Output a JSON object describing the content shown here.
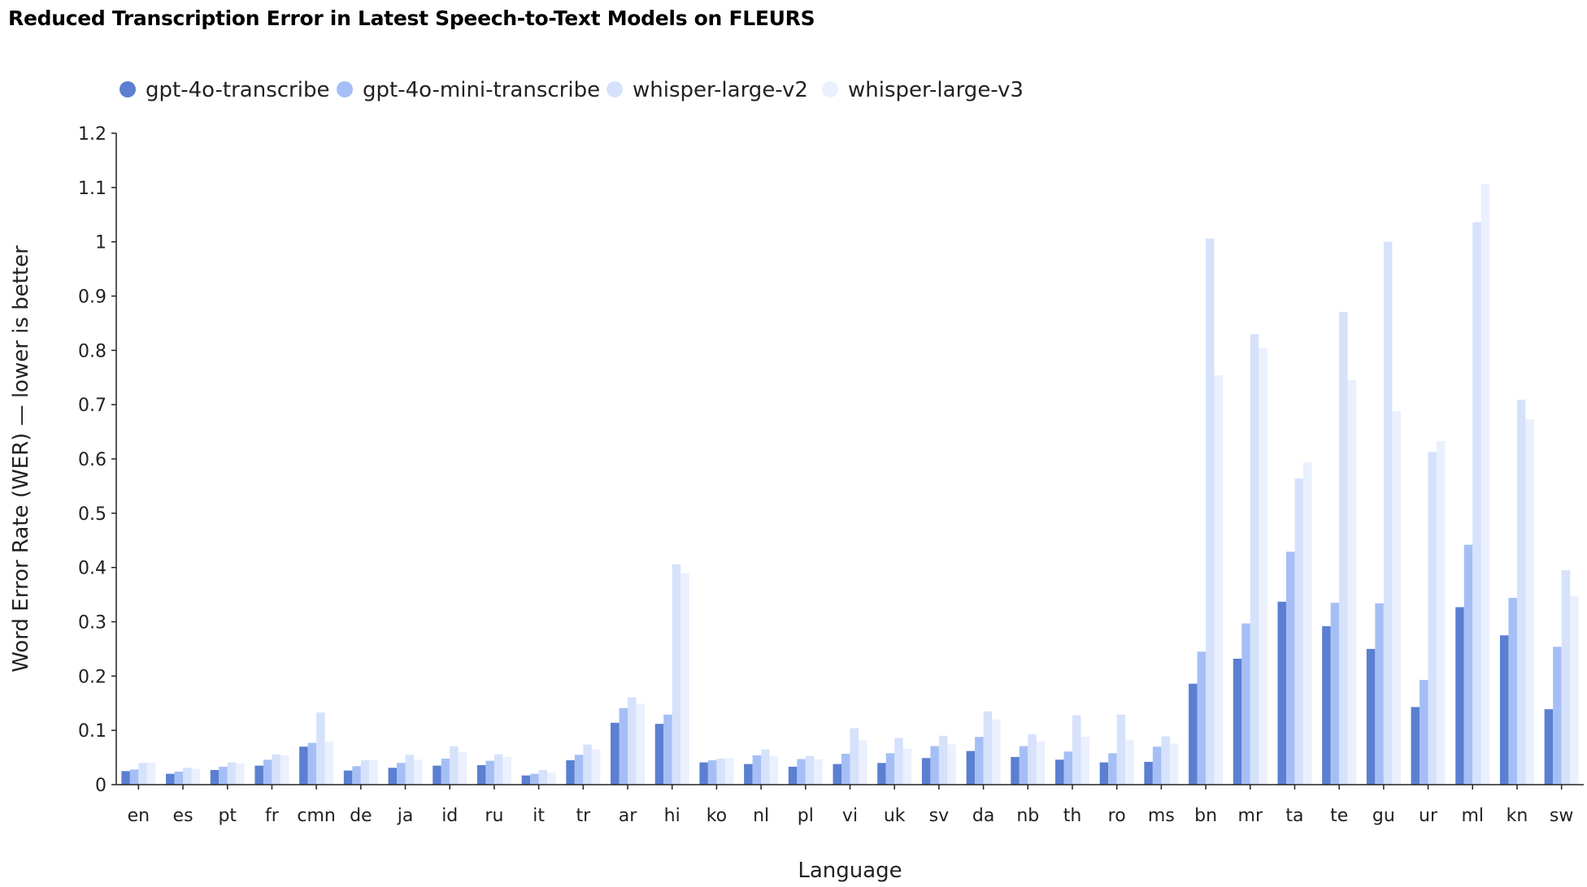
{
  "chart_data": {
    "type": "bar",
    "title": "Reduced Transcription Error in Latest Speech-to-Text Models on FLEURS",
    "xlabel": "Language",
    "ylabel": "Word Error Rate (WER) — lower is better",
    "ylim": [
      0,
      1.2
    ],
    "yticks": [
      "0",
      "0.1",
      "0.2",
      "0.3",
      "0.4",
      "0.5",
      "0.6",
      "0.7",
      "0.8",
      "0.9",
      "1",
      "1.1",
      "1.2"
    ],
    "grid": false,
    "legend_position": "top-left",
    "categories": [
      "en",
      "es",
      "pt",
      "fr",
      "cmn",
      "de",
      "ja",
      "id",
      "ru",
      "it",
      "tr",
      "ar",
      "hi",
      "ko",
      "nl",
      "pl",
      "vi",
      "uk",
      "sv",
      "da",
      "nb",
      "th",
      "ro",
      "ms",
      "bn",
      "mr",
      "ta",
      "te",
      "gu",
      "ur",
      "ml",
      "kn",
      "sw"
    ],
    "series": [
      {
        "name": "gpt-4o-transcribe",
        "color": "#5b7fd1",
        "values": [
          0.025,
          0.02,
          0.027,
          0.035,
          0.07,
          0.026,
          0.031,
          0.035,
          0.036,
          0.017,
          0.045,
          0.114,
          0.112,
          0.041,
          0.038,
          0.033,
          0.038,
          0.04,
          0.049,
          0.062,
          0.051,
          0.046,
          0.041,
          0.042,
          0.186,
          0.232,
          0.337,
          0.292,
          0.25,
          0.143,
          0.327,
          0.275,
          0.139
        ]
      },
      {
        "name": "gpt-4o-mini-transcribe",
        "color": "#a5bff6",
        "values": [
          0.028,
          0.024,
          0.033,
          0.046,
          0.077,
          0.034,
          0.04,
          0.048,
          0.044,
          0.02,
          0.055,
          0.141,
          0.129,
          0.045,
          0.054,
          0.047,
          0.057,
          0.058,
          0.071,
          0.088,
          0.071,
          0.061,
          0.058,
          0.07,
          0.245,
          0.297,
          0.429,
          0.335,
          0.334,
          0.193,
          0.442,
          0.344,
          0.254
        ]
      },
      {
        "name": "whisper-large-v2",
        "color": "#d6e2fb",
        "values": [
          0.04,
          0.031,
          0.041,
          0.056,
          0.133,
          0.045,
          0.055,
          0.071,
          0.056,
          0.027,
          0.074,
          0.161,
          0.406,
          0.048,
          0.065,
          0.053,
          0.104,
          0.086,
          0.09,
          0.135,
          0.093,
          0.128,
          0.129,
          0.089,
          1.006,
          0.83,
          0.564,
          0.871,
          1.0,
          0.613,
          1.036,
          0.709,
          0.395
        ]
      },
      {
        "name": "whisper-large-v3",
        "color": "#eaf0fd",
        "values": [
          0.041,
          0.029,
          0.039,
          0.054,
          0.079,
          0.045,
          0.046,
          0.06,
          0.051,
          0.022,
          0.065,
          0.149,
          0.389,
          0.049,
          0.052,
          0.047,
          0.082,
          0.066,
          0.074,
          0.12,
          0.08,
          0.088,
          0.083,
          0.076,
          0.754,
          0.805,
          0.594,
          0.745,
          0.688,
          0.633,
          1.106,
          0.673,
          0.348
        ]
      }
    ]
  }
}
